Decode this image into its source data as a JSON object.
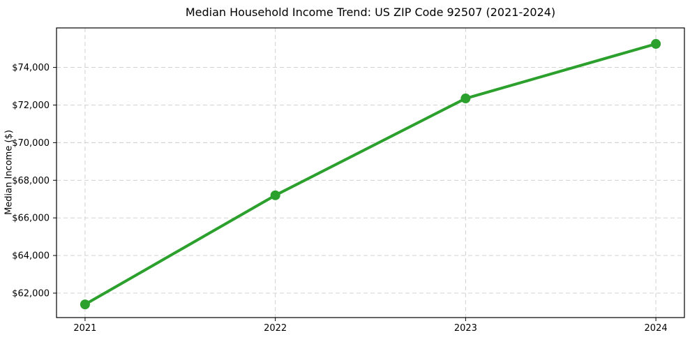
{
  "chart_data": {
    "type": "line",
    "title": "Median Household Income Trend: US ZIP Code 92507 (2021-2024)",
    "xlabel": "",
    "ylabel": "Median Income ($)",
    "x": [
      2021,
      2022,
      2023,
      2024
    ],
    "values": [
      61400,
      67200,
      72350,
      75250
    ],
    "x_tick_values": [
      2021,
      2022,
      2023,
      2024
    ],
    "x_tick_labels": [
      "2021",
      "2022",
      "2023",
      "2024"
    ],
    "y_tick_values": [
      62000,
      64000,
      66000,
      68000,
      70000,
      72000,
      74000
    ],
    "y_tick_labels": [
      "$62,000",
      "$64,000",
      "$66,000",
      "$68,000",
      "$70,000",
      "$72,000",
      "$74,000"
    ],
    "xlim": [
      2020.85,
      2024.15
    ],
    "ylim": [
      60700,
      76100
    ],
    "grid": {
      "show": true,
      "style": "dashed",
      "axis": "both"
    },
    "legend_position": "none",
    "line_color": "#2ca02c",
    "line_width": 4,
    "marker": {
      "shape": "circle",
      "color": "#2ca02c",
      "radius": 7
    },
    "grid_color": "#cccccc",
    "axis_color": "#000000",
    "background_color": "#ffffff"
  }
}
